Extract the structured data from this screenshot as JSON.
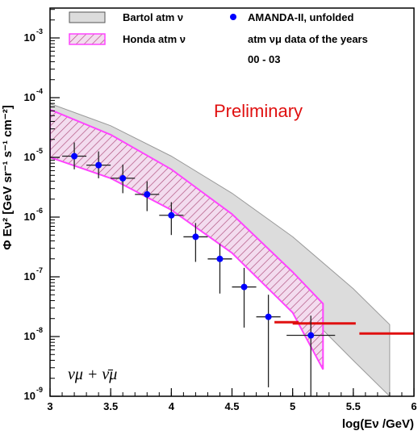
{
  "chart_data": {
    "type": "scatter",
    "title": "",
    "xlabel": "log(Eν /GeV)",
    "ylabel": "Φ Eν² [GeV sr⁻¹ s⁻¹ cm⁻²]",
    "xlim": [
      3,
      6
    ],
    "ylim_log10": [
      -9,
      -2.5
    ],
    "log_y": true,
    "grid": false,
    "legend_placement": "top",
    "x_ticks": [
      "3",
      "3.5",
      "4",
      "4.5",
      "5",
      "5.5",
      "6"
    ],
    "y_ticks": [
      {
        "base": "10",
        "exp": "-3",
        "value": -3
      },
      {
        "base": "10",
        "exp": "-4",
        "value": -4
      },
      {
        "base": "10",
        "exp": "-5",
        "value": -5
      },
      {
        "base": "10",
        "exp": "-6",
        "value": -6
      },
      {
        "base": "10",
        "exp": "-7",
        "value": -7
      },
      {
        "base": "10",
        "exp": "-8",
        "value": -8
      },
      {
        "base": "10",
        "exp": "-9",
        "value": -9
      }
    ],
    "bands": [
      {
        "name": "Bartol atm ν",
        "color": "#d9d9d9",
        "x": [
          3.0,
          3.5,
          4.0,
          4.5,
          5.0,
          5.5,
          5.8
        ],
        "low": [
          -5.0,
          -5.35,
          -5.88,
          -6.55,
          -7.38,
          -8.4,
          -9.0
        ],
        "high": [
          -4.1,
          -4.47,
          -4.98,
          -5.6,
          -6.33,
          -7.2,
          -7.8
        ]
      },
      {
        "name": "Honda atm ν",
        "color": "#ff66ff",
        "x": [
          3.0,
          3.5,
          4.0,
          4.5,
          5.0,
          5.25
        ],
        "low": [
          -5.0,
          -5.35,
          -5.88,
          -6.6,
          -7.6,
          -8.55
        ],
        "high": [
          -4.2,
          -4.62,
          -5.2,
          -5.95,
          -6.92,
          -7.45
        ]
      }
    ],
    "series": [
      {
        "name": "AMANDA-II, unfolded atm νμ data of the years 00 - 03",
        "color": "#0000ff",
        "x": [
          3.2,
          3.4,
          3.6,
          3.8,
          4.0,
          4.2,
          4.4,
          4.6,
          4.8,
          5.15
        ],
        "y_log": [
          -4.98,
          -5.13,
          -5.35,
          -5.62,
          -5.97,
          -6.33,
          -6.7,
          -7.17,
          -7.67,
          -7.98
        ],
        "y_lo": [
          -5.2,
          -5.35,
          -5.6,
          -5.9,
          -6.3,
          -6.75,
          -7.28,
          -7.85,
          -8.85,
          -9.0
        ],
        "y_hi": [
          -4.75,
          -4.9,
          -5.12,
          -5.4,
          -5.75,
          -6.1,
          -6.45,
          -6.85,
          -7.3,
          -7.65
        ],
        "x_lo": [
          3.1,
          3.3,
          3.5,
          3.7,
          3.9,
          4.1,
          4.3,
          4.5,
          4.7,
          4.95
        ],
        "x_hi": [
          3.3,
          3.5,
          3.7,
          3.9,
          4.1,
          4.3,
          4.5,
          4.7,
          4.9,
          5.35
        ]
      }
    ],
    "limits": [
      {
        "x_from": 4.85,
        "x_to": 5.05,
        "y_log": -7.76
      },
      {
        "x_from": 5.0,
        "x_to": 5.52,
        "y_log": -7.78
      },
      {
        "x_from": 5.55,
        "x_to": 6.0,
        "y_log": -7.95
      }
    ],
    "limit_color": "#e01010",
    "annotations": {
      "preliminary": "Preliminary",
      "formula": "νμ + ν̄μ"
    },
    "legend": [
      {
        "label": "Bartol atm ν",
        "kind": "band-gray"
      },
      {
        "label": "Honda atm ν",
        "kind": "band-hatch"
      },
      {
        "label": "AMANDA-II, unfolded",
        "kind": "marker"
      },
      {
        "label": "atm νμ data of the years",
        "kind": "text"
      },
      {
        "label": "00 - 03",
        "kind": "text"
      }
    ]
  }
}
